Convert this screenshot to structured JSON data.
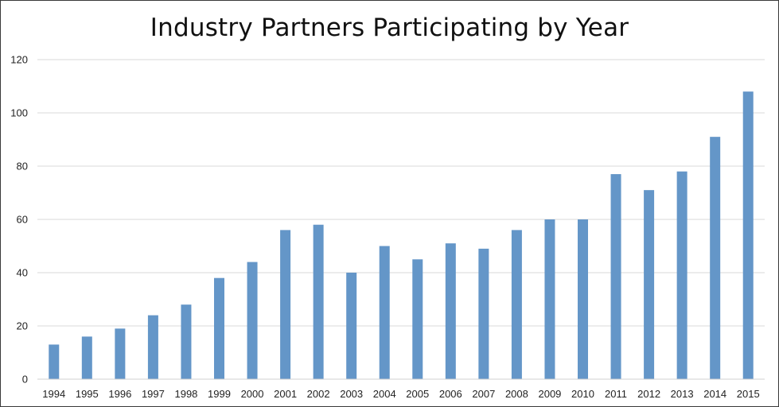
{
  "chart_data": {
    "type": "bar",
    "title": "Industry Partners Participating by Year",
    "xlabel": "",
    "ylabel": "",
    "categories": [
      "1994",
      "1995",
      "1996",
      "1997",
      "1998",
      "1999",
      "2000",
      "2001",
      "2002",
      "2003",
      "2004",
      "2005",
      "2006",
      "2007",
      "2008",
      "2009",
      "2010",
      "2011",
      "2012",
      "2013",
      "2014",
      "2015"
    ],
    "values": [
      13,
      16,
      19,
      24,
      28,
      38,
      44,
      56,
      58,
      40,
      50,
      45,
      51,
      49,
      56,
      60,
      60,
      77,
      71,
      78,
      91,
      108
    ],
    "ylim": [
      0,
      120
    ],
    "yticks": [
      0,
      20,
      40,
      60,
      80,
      100,
      120
    ],
    "ytick_labels": [
      "0",
      "20",
      "40",
      "60",
      "80",
      "100",
      "120"
    ],
    "grid": true,
    "legend": "none",
    "bar_color": "#6496c8",
    "grid_color": "#d9d9d9"
  }
}
